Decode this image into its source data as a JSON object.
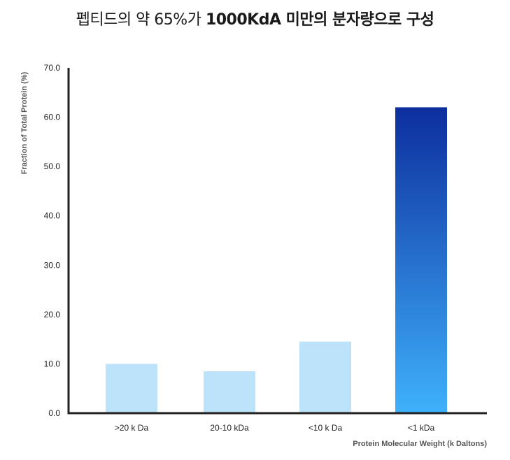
{
  "title": {
    "prefix": "펩티드의 약 65%가 ",
    "bold": "1000KdA 미만의 분자량으로 구성"
  },
  "chart_data": {
    "type": "bar",
    "categories": [
      ">20 k Da",
      "20-10 kDa",
      "<10 k Da",
      "<1 kDa"
    ],
    "values": [
      10.0,
      8.5,
      14.5,
      62.0
    ],
    "xlabel": "Protein Molecular Weight (k Daltons)",
    "ylabel": "Fraction of Total Protein (%)",
    "ylim": [
      0,
      70
    ],
    "yticks": [
      "0.0",
      "10.0",
      "20.0",
      "30.0",
      "40.0",
      "50.0",
      "60.0",
      "70.0"
    ],
    "grid": false,
    "legend": "none",
    "colors": {
      "light_bar": "#bde3fa",
      "highlight_top": "#0d2e9e",
      "highlight_bottom": "#3fb1fb",
      "axis": "#222222"
    },
    "highlight_index": 3
  }
}
